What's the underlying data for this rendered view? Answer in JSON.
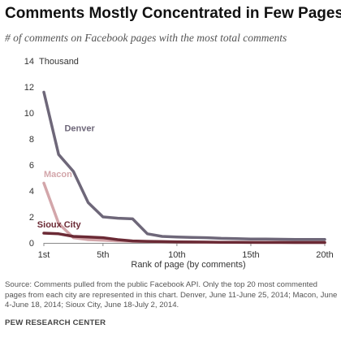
{
  "chart_data": {
    "type": "line",
    "title": "Comments Mostly Concentrated in Few Pages",
    "subtitle": "# of comments on Facebook pages with the most total comments",
    "xlabel": "Rank of page (by comments)",
    "ylabel": "",
    "yunit": "Thousand",
    "x": [
      1,
      2,
      3,
      4,
      5,
      6,
      7,
      8,
      9,
      10,
      11,
      12,
      13,
      14,
      15,
      16,
      17,
      18,
      19,
      20
    ],
    "x_tick_values": [
      1,
      5,
      10,
      15,
      20
    ],
    "x_tick_labels": [
      "1st",
      "5th",
      "10th",
      "15th",
      "20th"
    ],
    "y_ticks": [
      0,
      2,
      4,
      6,
      8,
      10,
      12,
      14
    ],
    "ylim": [
      0,
      14
    ],
    "xlim": [
      1,
      20
    ],
    "grid": false,
    "legend": "labels on lines",
    "series": [
      {
        "name": "Denver",
        "color": "#6e6779",
        "label_x": 2.4,
        "label_y": 8.6,
        "values": [
          11.6,
          6.8,
          5.5,
          3.1,
          2.0,
          1.9,
          1.85,
          0.7,
          0.5,
          0.45,
          0.42,
          0.4,
          0.35,
          0.33,
          0.3,
          0.3,
          0.28,
          0.27,
          0.27,
          0.27
        ]
      },
      {
        "name": "Macon",
        "color": "#d3a6aa",
        "label_x": 1.0,
        "label_y": 5.05,
        "values": [
          4.6,
          1.5,
          0.4,
          0.25,
          0.2,
          0.15,
          0.12,
          0.1,
          0.08,
          0.07,
          0.06,
          0.05,
          0.05,
          0.04,
          0.04,
          0.03,
          0.03,
          0.03,
          0.03,
          0.03
        ]
      },
      {
        "name": "Sioux City",
        "color": "#6b2a35",
        "label_x": 0.55,
        "label_y": 1.2,
        "values": [
          0.75,
          0.7,
          0.5,
          0.45,
          0.4,
          0.25,
          0.15,
          0.12,
          0.1,
          0.08,
          0.07,
          0.06,
          0.05,
          0.05,
          0.04,
          0.04,
          0.04,
          0.03,
          0.03,
          0.03
        ]
      }
    ]
  },
  "source": "Source: Comments pulled from the public Facebook API. Only the top 20 most commented pages from each city are represented in this chart.  Denver, June 11-June 25, 2014; Macon, June 4-June 18, 2014; Sioux City, June 18-July 2, 2014.",
  "brand": "PEW RESEARCH CENTER"
}
